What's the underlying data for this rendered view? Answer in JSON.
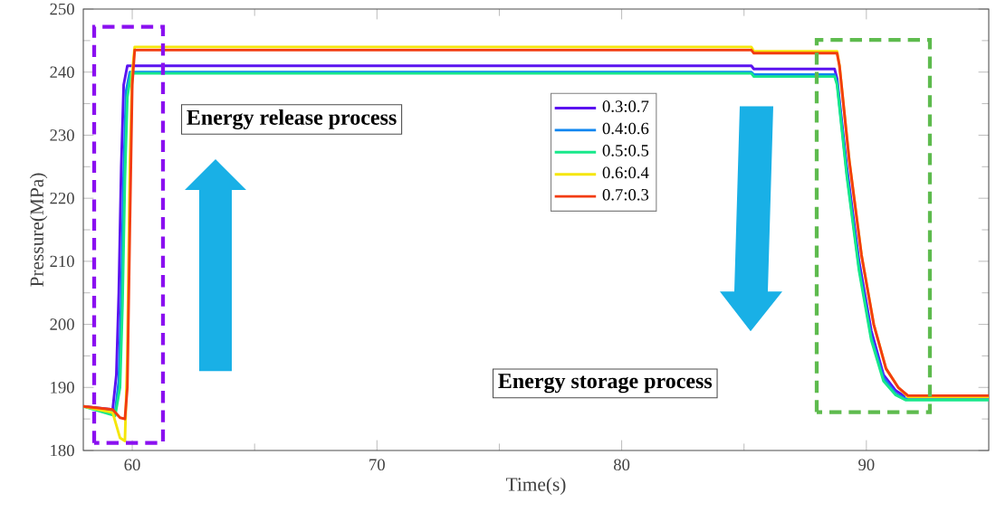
{
  "chart_data": {
    "type": "line",
    "xlabel": "Time(s)",
    "ylabel": "Pressure(MPa)",
    "xlim": [
      58,
      95
    ],
    "ylim": [
      180,
      250
    ],
    "xticks": [
      60,
      70,
      80,
      90
    ],
    "yticks": [
      180,
      190,
      200,
      210,
      220,
      230,
      240,
      250
    ],
    "grid": false,
    "legend": "top right",
    "marker": "none",
    "line_style": "solid",
    "annotations": [
      "Energy release process",
      "Energy storage process"
    ],
    "series": [
      {
        "name": "0.3:0.7",
        "color": "#5b13f0",
        "x": [
          58,
          59.2,
          59.35,
          59.45,
          59.55,
          59.65,
          59.8,
          85.3,
          85.4,
          88.7,
          88.8,
          89.2,
          89.7,
          90.2,
          90.7,
          91.2,
          91.6
        ],
        "values": [
          187,
          186.5,
          192,
          205,
          225,
          238,
          241,
          241,
          240.5,
          240.5,
          239,
          225,
          210,
          199,
          192,
          189.5,
          188.5
        ]
      },
      {
        "name": "0.4:0.6",
        "color": "#0e86f0",
        "x": [
          58,
          59.3,
          59.45,
          59.55,
          59.65,
          59.75,
          59.9,
          85.3,
          85.4,
          88.7,
          88.8,
          89.2,
          89.7,
          90.2,
          90.7,
          91.2,
          91.6,
          95
        ],
        "values": [
          187,
          186,
          191,
          204,
          224,
          237,
          240,
          240,
          239.6,
          239.6,
          238.5,
          224,
          209,
          198,
          191.5,
          189,
          188.2,
          188.2
        ]
      },
      {
        "name": "0.5:0.5",
        "color": "#17e88a",
        "x": [
          58,
          59.3,
          59.5,
          59.6,
          59.7,
          59.8,
          59.95,
          85.3,
          85.4,
          88.7,
          88.8,
          89.2,
          89.7,
          90.2,
          90.7,
          91.2,
          91.6,
          95
        ],
        "values": [
          187,
          185.5,
          190,
          203,
          223,
          236,
          239.8,
          239.8,
          239.3,
          239.3,
          238,
          223.5,
          208.5,
          197.5,
          191,
          188.8,
          188,
          188
        ]
      },
      {
        "name": "0.6:0.4",
        "color": "#f5e60a",
        "x": [
          58,
          59.2,
          59.5,
          59.7,
          59.8,
          59.9,
          60.0,
          60.1,
          85.3,
          85.4,
          88.8,
          88.9,
          89.3,
          89.8,
          90.3,
          90.8,
          91.3,
          91.7,
          95
        ],
        "values": [
          187,
          186,
          182,
          181.5,
          195,
          225,
          240,
          244,
          244,
          243.3,
          243.3,
          241,
          226,
          211,
          200,
          193,
          190,
          188.5,
          188.5
        ]
      },
      {
        "name": "0.7:0.3",
        "color": "#f23c10",
        "x": [
          58,
          59.2,
          59.5,
          59.7,
          59.8,
          59.9,
          60.0,
          60.1,
          85.3,
          85.4,
          88.8,
          88.9,
          89.3,
          89.8,
          90.3,
          90.8,
          91.3,
          91.7,
          95
        ],
        "values": [
          187,
          186.5,
          185.2,
          185,
          190,
          215,
          238,
          243.5,
          243.5,
          243,
          243,
          241,
          226,
          211,
          200,
          193,
          190,
          188.7,
          188.7
        ]
      }
    ]
  }
}
